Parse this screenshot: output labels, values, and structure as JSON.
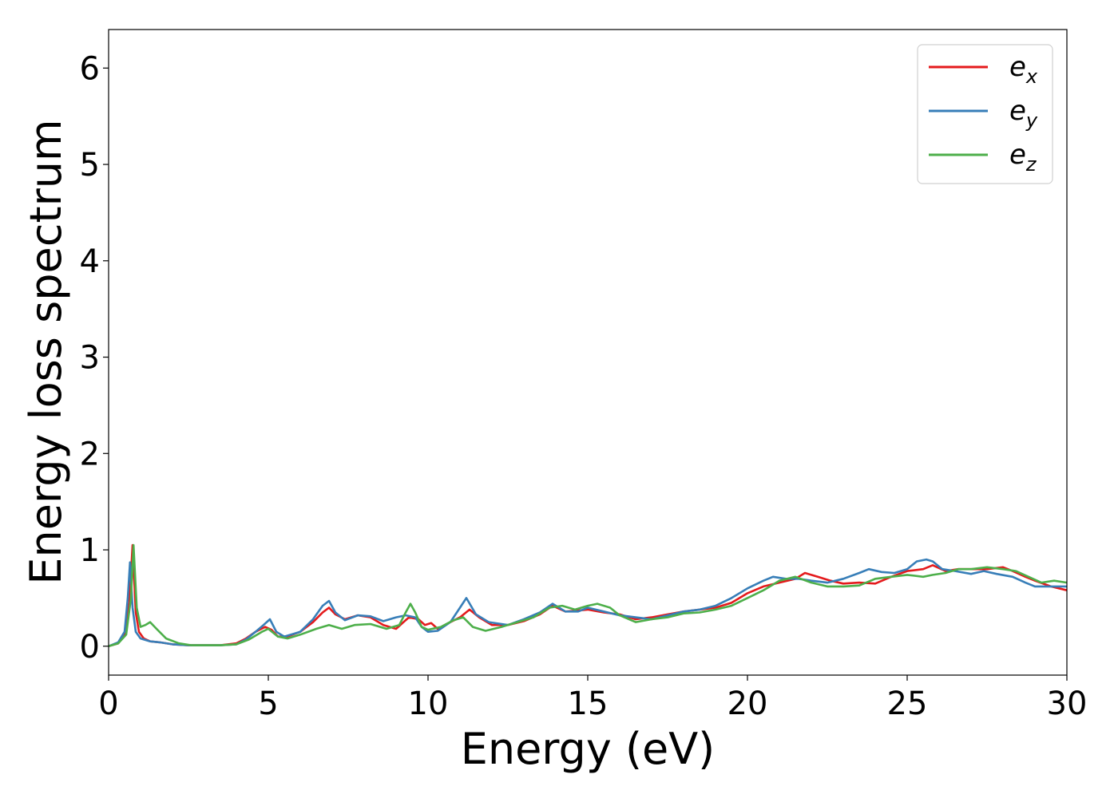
{
  "chart_data": {
    "type": "line",
    "title": "",
    "xlabel": "Energy (eV)",
    "ylabel": "Energy loss spectrum",
    "xlim": [
      0,
      30
    ],
    "ylim": [
      -0.3,
      6.4
    ],
    "xticks": [
      0,
      5,
      10,
      15,
      20,
      25,
      30
    ],
    "yticks": [
      0,
      1,
      2,
      3,
      4,
      5,
      6
    ],
    "grid": false,
    "legend_position": "top-right",
    "series": [
      {
        "name": "e_x",
        "label_base": "e",
        "label_sub": "x",
        "color": "#e41a1c",
        "x": [
          0,
          0.3,
          0.5,
          0.65,
          0.75,
          0.85,
          0.95,
          1.1,
          1.3,
          1.6,
          2.0,
          2.5,
          3.0,
          3.5,
          4.0,
          4.3,
          4.6,
          4.9,
          5.1,
          5.3,
          5.6,
          6.0,
          6.4,
          6.7,
          6.9,
          7.1,
          7.4,
          7.8,
          8.2,
          8.6,
          9.0,
          9.4,
          9.7,
          9.9,
          10.1,
          10.3,
          10.7,
          11.0,
          11.3,
          11.6,
          12.0,
          12.5,
          13.0,
          13.5,
          13.9,
          14.3,
          14.7,
          15.0,
          15.5,
          16.0,
          16.5,
          17.0,
          17.5,
          18.0,
          18.5,
          19.0,
          19.5,
          20.0,
          20.5,
          21.0,
          21.5,
          21.8,
          22.2,
          22.6,
          23.0,
          23.5,
          24.0,
          24.5,
          25.0,
          25.5,
          25.8,
          26.2,
          26.6,
          27.0,
          27.5,
          28.0,
          28.3,
          28.7,
          29.0,
          29.5,
          30.0
        ],
        "values": [
          0,
          0.03,
          0.12,
          0.45,
          1.05,
          0.35,
          0.15,
          0.08,
          0.05,
          0.04,
          0.02,
          0.01,
          0.01,
          0.01,
          0.03,
          0.08,
          0.15,
          0.2,
          0.17,
          0.1,
          0.1,
          0.15,
          0.25,
          0.35,
          0.4,
          0.33,
          0.28,
          0.32,
          0.3,
          0.22,
          0.18,
          0.3,
          0.28,
          0.22,
          0.24,
          0.18,
          0.25,
          0.3,
          0.38,
          0.3,
          0.22,
          0.22,
          0.26,
          0.33,
          0.42,
          0.36,
          0.37,
          0.38,
          0.35,
          0.33,
          0.28,
          0.3,
          0.33,
          0.36,
          0.38,
          0.4,
          0.45,
          0.55,
          0.62,
          0.66,
          0.7,
          0.76,
          0.72,
          0.68,
          0.65,
          0.66,
          0.65,
          0.72,
          0.78,
          0.8,
          0.84,
          0.78,
          0.8,
          0.8,
          0.8,
          0.82,
          0.78,
          0.72,
          0.68,
          0.62,
          0.58
        ]
      },
      {
        "name": "e_y",
        "label_base": "e",
        "label_sub": "y",
        "color": "#377eb8",
        "x": [
          0,
          0.3,
          0.5,
          0.6,
          0.67,
          0.75,
          0.85,
          1.0,
          1.3,
          1.6,
          2.0,
          2.5,
          3.0,
          3.5,
          4.0,
          4.3,
          4.6,
          4.85,
          5.05,
          5.25,
          5.5,
          6.0,
          6.4,
          6.7,
          6.9,
          7.1,
          7.4,
          7.8,
          8.2,
          8.6,
          9.0,
          9.3,
          9.6,
          9.8,
          10.0,
          10.3,
          10.7,
          11.0,
          11.2,
          11.5,
          11.9,
          12.5,
          13.0,
          13.5,
          13.9,
          14.3,
          14.7,
          15.0,
          15.5,
          16.0,
          16.5,
          17.0,
          17.5,
          18.0,
          18.5,
          19.0,
          19.5,
          20.0,
          20.5,
          20.8,
          21.2,
          21.6,
          22.0,
          22.5,
          23.0,
          23.5,
          23.8,
          24.2,
          24.6,
          25.0,
          25.3,
          25.6,
          25.8,
          26.1,
          26.5,
          27.0,
          27.4,
          27.8,
          28.3,
          28.7,
          29.0,
          29.5,
          30.0
        ],
        "values": [
          0,
          0.04,
          0.15,
          0.5,
          0.87,
          0.4,
          0.15,
          0.08,
          0.05,
          0.04,
          0.02,
          0.01,
          0.01,
          0.01,
          0.02,
          0.07,
          0.15,
          0.22,
          0.28,
          0.15,
          0.1,
          0.15,
          0.28,
          0.42,
          0.47,
          0.35,
          0.27,
          0.32,
          0.31,
          0.26,
          0.3,
          0.32,
          0.3,
          0.2,
          0.15,
          0.16,
          0.25,
          0.4,
          0.5,
          0.33,
          0.25,
          0.22,
          0.28,
          0.35,
          0.44,
          0.36,
          0.36,
          0.4,
          0.36,
          0.32,
          0.3,
          0.28,
          0.32,
          0.36,
          0.38,
          0.42,
          0.5,
          0.6,
          0.68,
          0.72,
          0.7,
          0.7,
          0.68,
          0.66,
          0.7,
          0.76,
          0.8,
          0.77,
          0.76,
          0.8,
          0.88,
          0.9,
          0.88,
          0.8,
          0.78,
          0.75,
          0.78,
          0.75,
          0.72,
          0.66,
          0.62,
          0.62,
          0.62
        ]
      },
      {
        "name": "e_z",
        "label_base": "e",
        "label_sub": "z",
        "color": "#4daf4a",
        "x": [
          0,
          0.3,
          0.55,
          0.7,
          0.78,
          0.88,
          1.0,
          1.15,
          1.3,
          1.5,
          1.8,
          2.2,
          2.6,
          3.0,
          3.5,
          4.0,
          4.4,
          4.8,
          5.0,
          5.3,
          5.6,
          6.0,
          6.5,
          6.9,
          7.3,
          7.7,
          8.2,
          8.7,
          9.1,
          9.3,
          9.45,
          9.6,
          9.8,
          10.0,
          10.4,
          10.8,
          11.1,
          11.4,
          11.8,
          12.3,
          12.8,
          13.3,
          13.8,
          14.2,
          14.6,
          15.0,
          15.3,
          15.7,
          16.0,
          16.5,
          17.0,
          17.5,
          18.0,
          18.5,
          19.0,
          19.5,
          20.0,
          20.5,
          21.0,
          21.5,
          22.0,
          22.5,
          23.0,
          23.5,
          24.0,
          24.5,
          25.0,
          25.5,
          25.8,
          26.2,
          26.6,
          27.0,
          27.5,
          28.0,
          28.4,
          28.8,
          29.2,
          29.6,
          30.0
        ],
        "values": [
          0,
          0.03,
          0.12,
          0.5,
          1.05,
          0.4,
          0.2,
          0.22,
          0.25,
          0.18,
          0.08,
          0.03,
          0.01,
          0.01,
          0.01,
          0.02,
          0.07,
          0.15,
          0.18,
          0.1,
          0.08,
          0.12,
          0.18,
          0.22,
          0.18,
          0.22,
          0.23,
          0.18,
          0.22,
          0.35,
          0.44,
          0.35,
          0.2,
          0.17,
          0.2,
          0.27,
          0.3,
          0.2,
          0.16,
          0.2,
          0.25,
          0.3,
          0.4,
          0.42,
          0.38,
          0.42,
          0.44,
          0.4,
          0.32,
          0.25,
          0.28,
          0.3,
          0.34,
          0.35,
          0.38,
          0.42,
          0.5,
          0.58,
          0.68,
          0.72,
          0.66,
          0.62,
          0.62,
          0.63,
          0.7,
          0.72,
          0.74,
          0.72,
          0.74,
          0.76,
          0.8,
          0.8,
          0.82,
          0.8,
          0.78,
          0.72,
          0.66,
          0.68,
          0.66
        ]
      }
    ]
  }
}
